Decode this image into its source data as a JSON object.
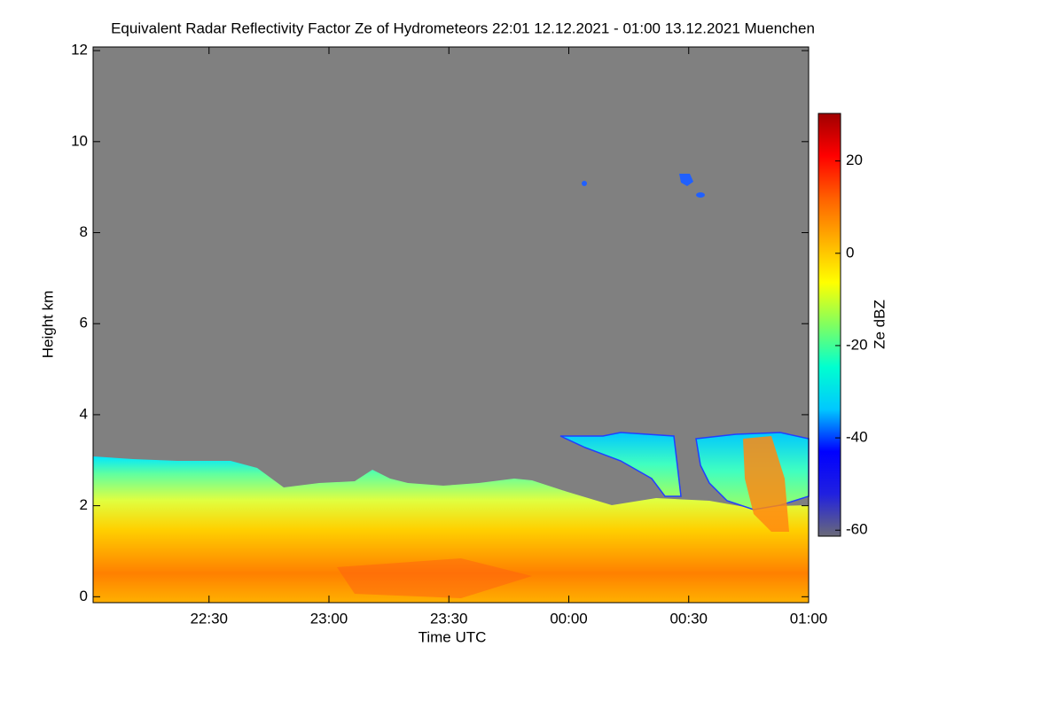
{
  "chart_data": {
    "type": "heatmap",
    "title": "Equivalent Radar Reflectivity Factor Ze of Hydrometeors   22:01 12.12.2021 - 01:00 13.12.2021 Muenchen",
    "xlabel": "Time UTC",
    "ylabel": "Height km",
    "colorbar_label": "Ze dBZ",
    "xlim": [
      1,
      180
    ],
    "xticks": [
      {
        "value": 30,
        "label": "22:30"
      },
      {
        "value": 60,
        "label": "23:00"
      },
      {
        "value": 90,
        "label": "23:30"
      },
      {
        "value": 120,
        "label": "00:00"
      },
      {
        "value": 150,
        "label": "00:30"
      },
      {
        "value": 180,
        "label": "01:00"
      }
    ],
    "ylim": [
      -0.13,
      12.08
    ],
    "yticks": [
      0,
      2,
      4,
      6,
      8,
      10,
      12
    ],
    "zlim": [
      -61.3,
      30.3
    ],
    "zticks": [
      -60,
      -40,
      -20,
      0,
      20
    ],
    "colorscale": [
      "#6a6a78",
      "#2020e0",
      "#0000ff",
      "#00c8ff",
      "#00ffd0",
      "#80ff60",
      "#ffff00",
      "#ffb000",
      "#ff6000",
      "#ff0000",
      "#a00000"
    ],
    "background": "#808080"
  }
}
